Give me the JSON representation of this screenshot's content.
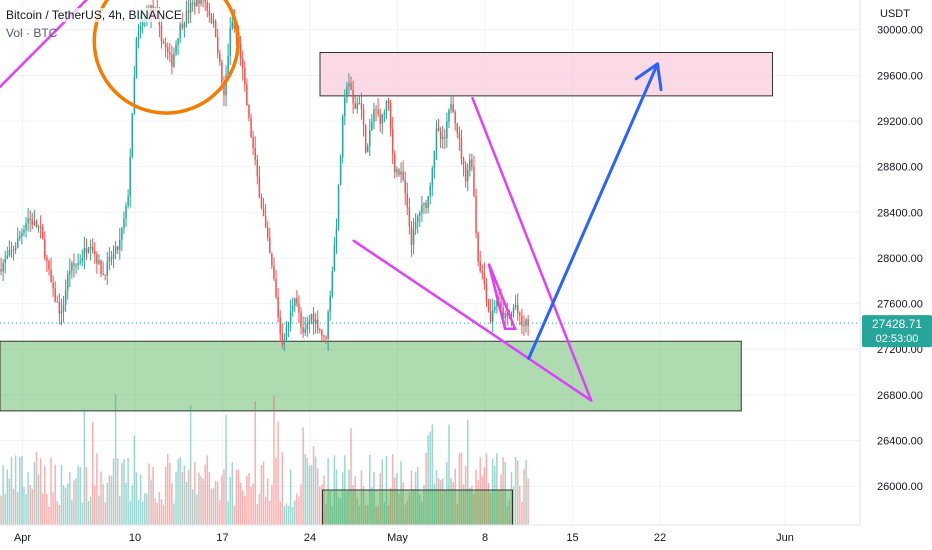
{
  "header": {
    "title": "Bitcoin / TetherUS, 4h, BINANCE",
    "volume_label": "Vol · BTC"
  },
  "chart_data": {
    "type": "candlestick",
    "title": "Bitcoin / TetherUS, 4h, BINANCE",
    "price_axis": {
      "unit_label": "USDT",
      "ticks": [
        30000,
        29600,
        29200,
        28800,
        28400,
        28000,
        27600,
        27200,
        26800,
        26400,
        26000
      ],
      "tick_labels": [
        "30000.00",
        "29600.00",
        "29200.00",
        "28800.00",
        "28400.00",
        "28000.00",
        "27600.00",
        "27200.00",
        "26800.00",
        "26400.00",
        "26000.00"
      ],
      "range": [
        25660,
        30260
      ]
    },
    "time_axis": {
      "labels": [
        "Apr",
        "10",
        "17",
        "24",
        "May",
        "8",
        "15",
        "22",
        "Jun"
      ],
      "label_days": [
        1,
        10,
        17,
        24,
        31,
        38,
        45,
        52,
        62
      ],
      "range_days": [
        -0.8,
        68
      ]
    },
    "last_price": {
      "value": "27428.71",
      "countdown": "02:53:00",
      "price": 27428.71,
      "color": "#26a69a"
    },
    "colors": {
      "up": "#26a69a",
      "down": "#ef5350",
      "support_zone": "#4caf50",
      "resistance_zone": "#f8bbd0",
      "wedge": "#e040fb",
      "forecast_arrow": "#2962ff",
      "highlight_circle": "#f57c00",
      "volume_box": "#4caf50"
    },
    "price_path": [
      [
        -0.8,
        27900
      ],
      [
        0.5,
        28100
      ],
      [
        1.5,
        28350
      ],
      [
        2.5,
        28250
      ],
      [
        3.5,
        27700
      ],
      [
        4.2,
        27500
      ],
      [
        4.8,
        27900
      ],
      [
        5.5,
        27950
      ],
      [
        6.5,
        28150
      ],
      [
        7.5,
        27850
      ],
      [
        8.2,
        28000
      ],
      [
        8.8,
        28100
      ],
      [
        9.5,
        28500
      ],
      [
        10.2,
        29900
      ],
      [
        10.8,
        30100
      ],
      [
        11.5,
        30200
      ],
      [
        12.3,
        29900
      ],
      [
        13.0,
        29700
      ],
      [
        13.6,
        30000
      ],
      [
        14.5,
        30200
      ],
      [
        15.5,
        30300
      ],
      [
        16.5,
        30000
      ],
      [
        17.2,
        29400
      ],
      [
        17.8,
        30100
      ],
      [
        18.5,
        29800
      ],
      [
        19.2,
        29200
      ],
      [
        20.0,
        28600
      ],
      [
        20.6,
        28200
      ],
      [
        21.2,
        27800
      ],
      [
        21.8,
        27250
      ],
      [
        22.3,
        27400
      ],
      [
        22.9,
        27700
      ],
      [
        23.5,
        27300
      ],
      [
        24.2,
        27500
      ],
      [
        24.8,
        27400
      ],
      [
        25.3,
        27250
      ],
      [
        25.7,
        27700
      ],
      [
        26.2,
        28300
      ],
      [
        26.7,
        29200
      ],
      [
        27.1,
        29600
      ],
      [
        27.6,
        29300
      ],
      [
        28.1,
        29400
      ],
      [
        28.6,
        28900
      ],
      [
        29.2,
        29300
      ],
      [
        29.8,
        29200
      ],
      [
        30.3,
        29400
      ],
      [
        30.8,
        28800
      ],
      [
        31.5,
        28700
      ],
      [
        32.2,
        28150
      ],
      [
        32.8,
        28400
      ],
      [
        33.5,
        28500
      ],
      [
        34.2,
        29100
      ],
      [
        34.8,
        29000
      ],
      [
        35.4,
        29400
      ],
      [
        35.9,
        29100
      ],
      [
        36.5,
        28700
      ],
      [
        37.0,
        28900
      ],
      [
        37.5,
        28000
      ],
      [
        38.0,
        27800
      ],
      [
        38.5,
        27450
      ],
      [
        39.0,
        27650
      ],
      [
        39.5,
        27500
      ],
      [
        40.0,
        27450
      ],
      [
        40.5,
        27600
      ],
      [
        41.0,
        27400
      ],
      [
        41.4,
        27428.71
      ]
    ],
    "volume_profile": {
      "bar_count": 170,
      "relative_max": 1.0
    },
    "drawings": {
      "upper_wedge_line": {
        "from": [
          37.0,
          29400
        ],
        "to": [
          46.5,
          26750
        ]
      },
      "lower_wedge_line": {
        "from": [
          27.5,
          28150
        ],
        "to": [
          46.5,
          26750
        ]
      },
      "small_triangle": [
        [
          38.3,
          27950
        ],
        [
          39.6,
          27380
        ],
        [
          40.4,
          27380
        ]
      ],
      "earlier_trendline": {
        "from": [
          -0.8,
          29500
        ],
        "to": [
          9.2,
          30600
        ]
      },
      "highlight_circle_center": [
        12.5,
        29900
      ],
      "forecast_arrow": {
        "from": [
          41.5,
          27120
        ],
        "to": [
          51.8,
          29700
        ]
      },
      "resistance_zone": {
        "from_day": 24.8,
        "to_day": 61,
        "low": 29420,
        "high": 29800
      },
      "support_zone": {
        "from_day": -0.8,
        "to_day": 58.5,
        "low": 26660,
        "high": 27270
      },
      "volume_box": {
        "from_day": 25.0,
        "to_day": 40.2
      }
    }
  }
}
